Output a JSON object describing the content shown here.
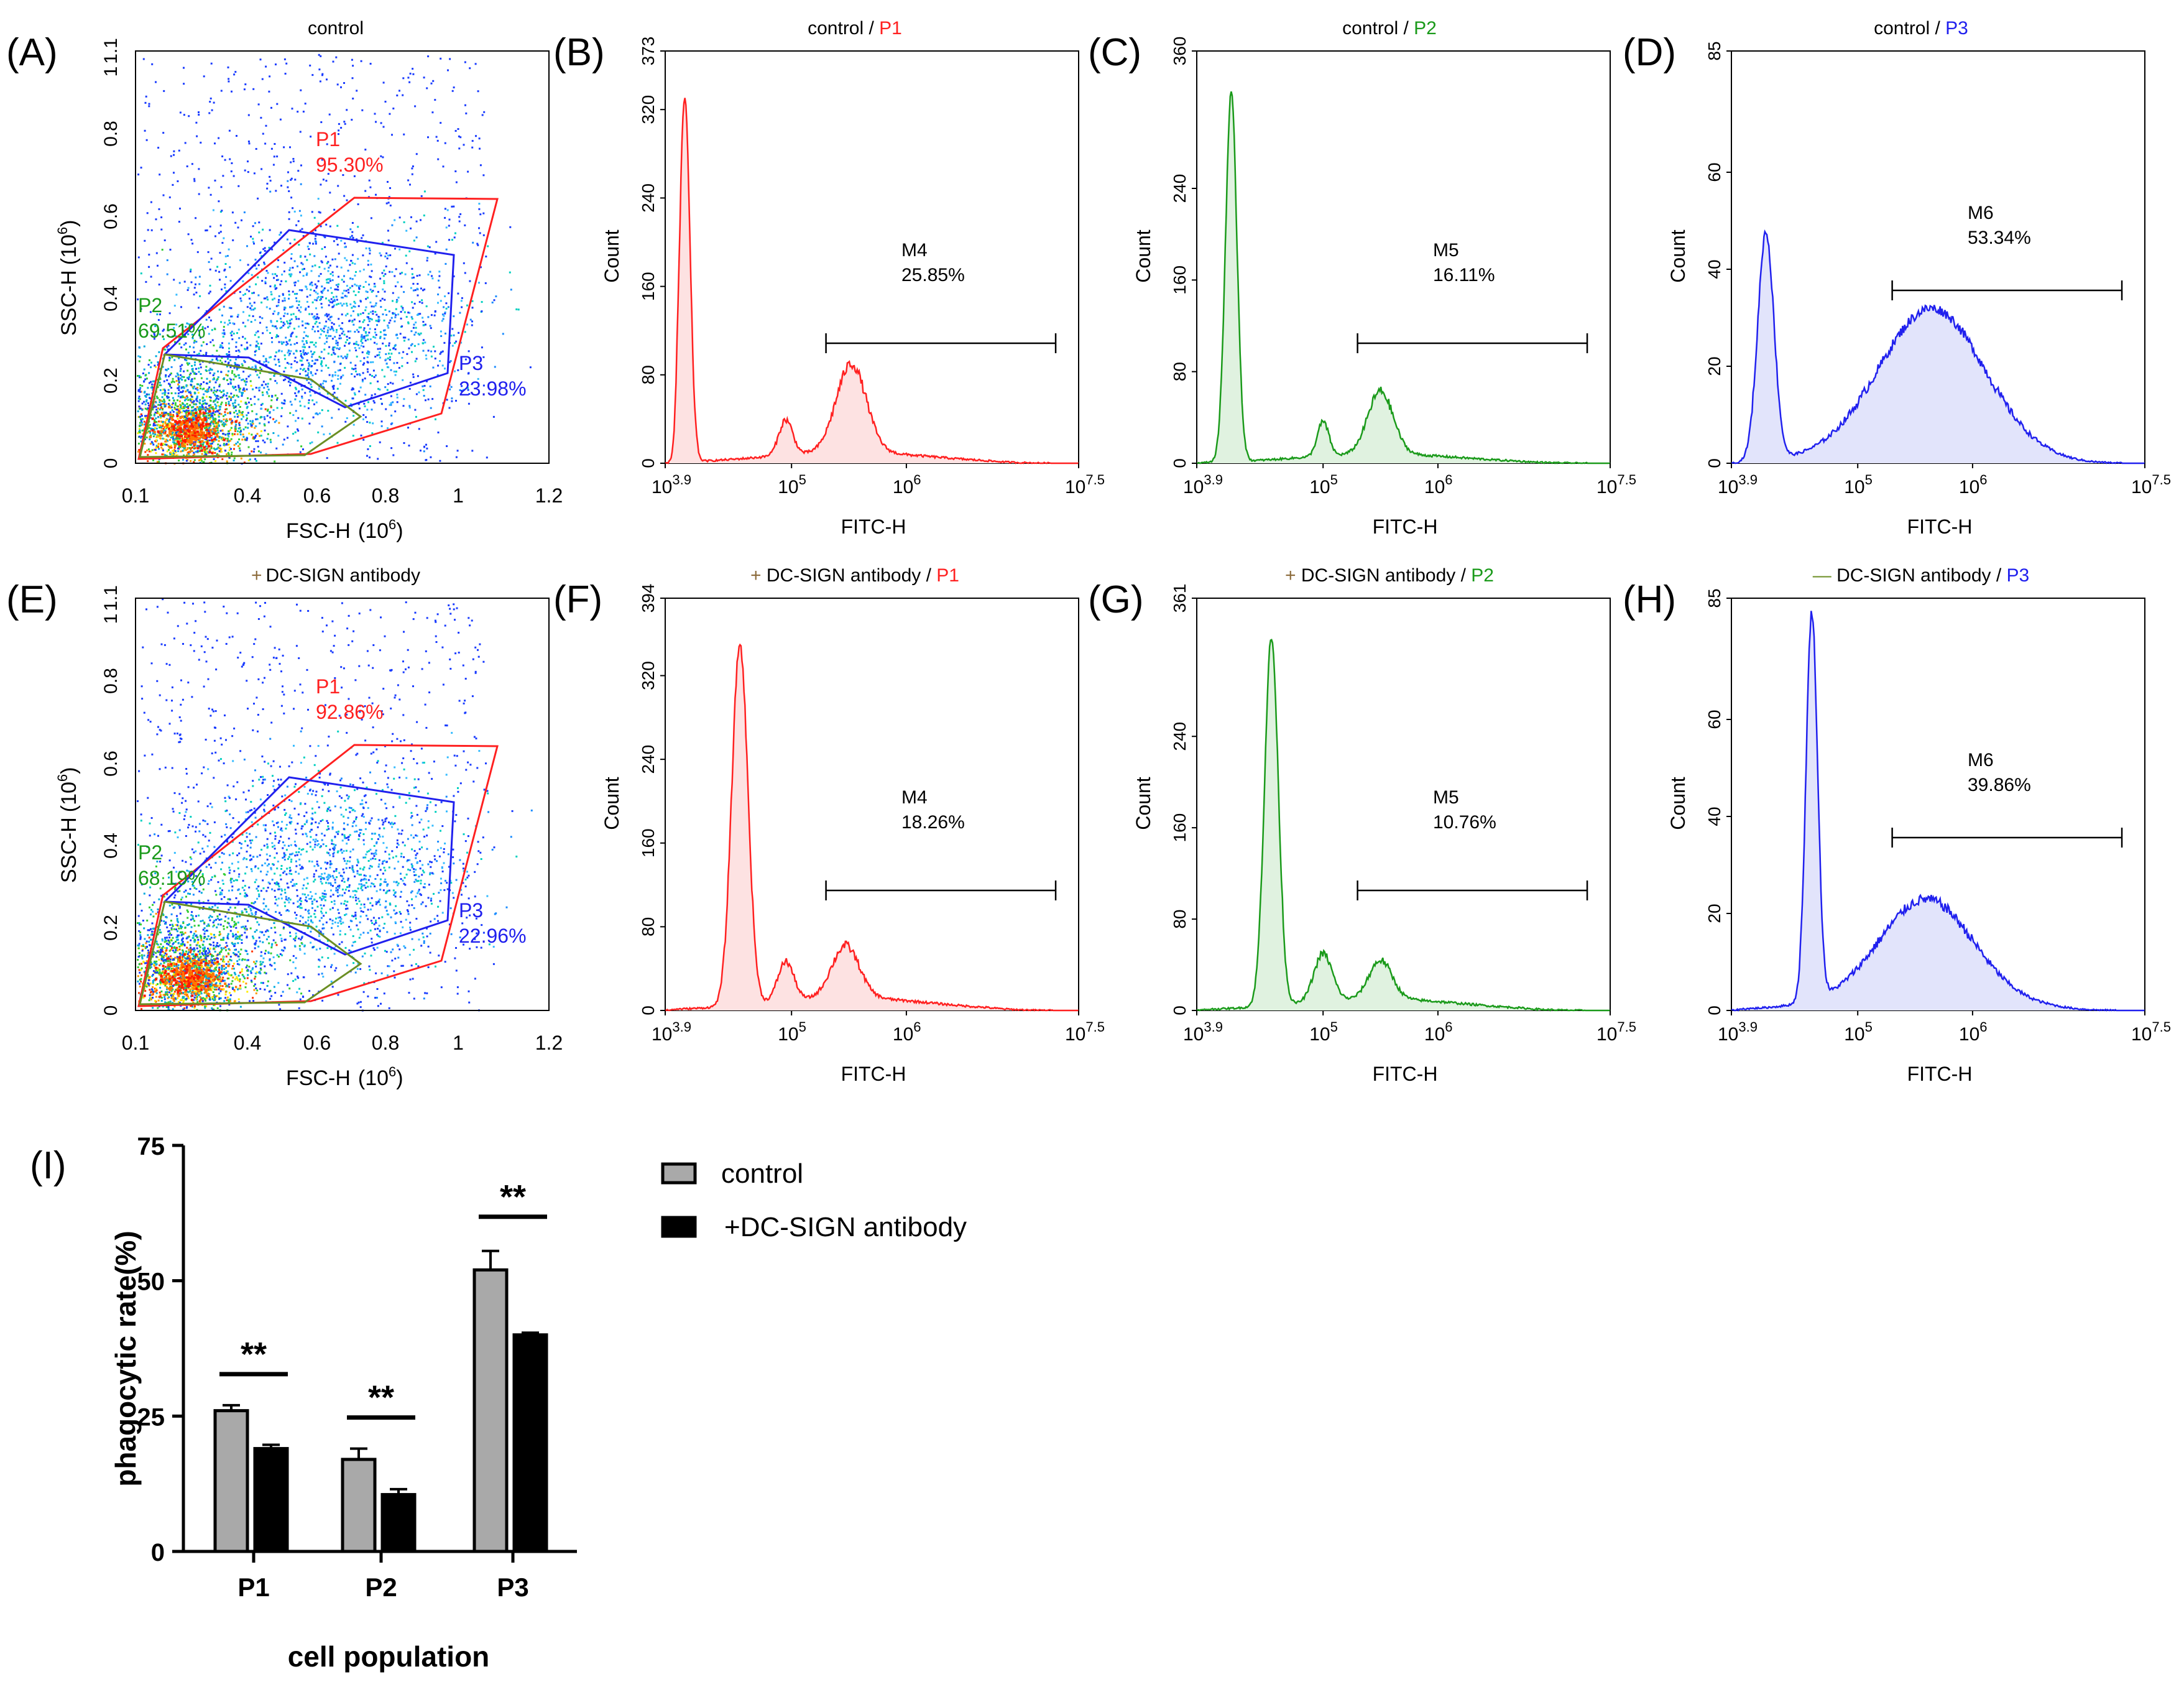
{
  "colors": {
    "red": "#ff2020",
    "green": "#1a9a1a",
    "blue": "#2020ee",
    "black": "#000000",
    "gray": "#a9a9a9",
    "lightred": "#fde2e2",
    "lightgreen": "#e0f2e0",
    "lightblue": "#e2e4fb"
  },
  "panels": {
    "A": {
      "label": "(A)",
      "title": "control",
      "xlabel": "FSC-H",
      "xunit": "(10",
      "xunit_exp": "6",
      "xunit_close": ")",
      "ylabel": "SSC-H",
      "yunit": "(10",
      "yunit_exp": "6",
      "yunit_close": ")",
      "xticks": [
        "0.1",
        "0.4",
        "0.6",
        "0.8",
        "1",
        "1.2"
      ],
      "yticks": [
        "0",
        "0.2",
        "0.4",
        "0.6",
        "0.8",
        "1",
        "1.1"
      ],
      "gates": {
        "P1": {
          "name": "P1",
          "pct": "95.30%"
        },
        "P2": {
          "name": "P2",
          "pct": "69.51%"
        },
        "P3": {
          "name": "P3",
          "pct": "23.98%"
        }
      }
    },
    "E": {
      "label": "(E)",
      "title": "DC-SIGN antibody",
      "title_prefix": "+",
      "xlabel": "FSC-H",
      "xunit": "(10",
      "xunit_exp": "6",
      "xunit_close": ")",
      "ylabel": "SSC-H",
      "yunit": "(10",
      "yunit_exp": "6",
      "yunit_close": ")",
      "xticks": [
        "0.1",
        "0.4",
        "0.6",
        "0.8",
        "1",
        "1.2"
      ],
      "yticks": [
        "0",
        "0.2",
        "0.4",
        "0.6",
        "0.8",
        "1",
        "1.1"
      ],
      "gates": {
        "P1": {
          "name": "P1",
          "pct": "92.86%"
        },
        "P2": {
          "name": "P2",
          "pct": "68.19%"
        },
        "P3": {
          "name": "P3",
          "pct": "22.96%"
        }
      }
    },
    "B": {
      "label": "(B)",
      "title_pre": "control / ",
      "title_gate": "P1",
      "ymax": 373,
      "yticks": [
        "0",
        "80",
        "160",
        "240",
        "320",
        "373"
      ],
      "marker": "M4",
      "pct": "25.85%",
      "peaks": [
        [
          4.07,
          330,
          0.045
        ],
        [
          4.95,
          32,
          0.06
        ],
        [
          5.52,
          80,
          0.13
        ]
      ],
      "baseline": 10
    },
    "C": {
      "label": "(C)",
      "title_pre": "control / ",
      "title_gate": "P2",
      "ymax": 360,
      "yticks": [
        "0",
        "80",
        "160",
        "240",
        "360"
      ],
      "marker": "M5",
      "pct": "16.11%",
      "peaks": [
        [
          4.2,
          320,
          0.05
        ],
        [
          5.0,
          30,
          0.05
        ],
        [
          5.5,
          55,
          0.11
        ]
      ],
      "baseline": 8
    },
    "D": {
      "label": "(D)",
      "title_pre": "control / ",
      "title_gate": "P3",
      "ymax": 85,
      "yticks": [
        "0",
        "20",
        "40",
        "60",
        "85"
      ],
      "marker": "M6",
      "pct": "53.34%",
      "peaks": [
        [
          4.2,
          47,
          0.07
        ],
        [
          5.65,
          29,
          0.45
        ]
      ],
      "baseline": 3
    },
    "F": {
      "label": "(F)",
      "title_prefix": "+",
      "title_pre": "DC-SIGN antibody / ",
      "title_gate": "P1",
      "ymax": 394,
      "yticks": [
        "0",
        "80",
        "160",
        "240",
        "320",
        "394"
      ],
      "marker": "M4",
      "pct": "18.26%",
      "peaks": [
        [
          4.55,
          345,
          0.07
        ],
        [
          4.95,
          38,
          0.07
        ],
        [
          5.47,
          50,
          0.12
        ]
      ],
      "baseline": 12
    },
    "G": {
      "label": "(G)",
      "title_prefix": "+",
      "title_pre": "DC-SIGN antibody / ",
      "title_gate": "P2",
      "ymax": 361,
      "yticks": [
        "0",
        "80",
        "160",
        "240",
        "361"
      ],
      "marker": "M5",
      "pct": "10.76%",
      "peaks": [
        [
          4.55,
          322,
          0.06
        ],
        [
          5.0,
          42,
          0.08
        ],
        [
          5.5,
          34,
          0.1
        ]
      ],
      "baseline": 10
    },
    "H": {
      "label": "(H)",
      "title_prefix": "—",
      "title_pre": "DC-SIGN antibody / ",
      "title_gate": "P3",
      "ymax": 85,
      "yticks": [
        "0",
        "20",
        "40",
        "60",
        "85"
      ],
      "marker": "M6",
      "pct": "39.86%",
      "peaks": [
        [
          4.6,
          80,
          0.05
        ],
        [
          5.6,
          20,
          0.4
        ]
      ],
      "baseline": 3
    }
  },
  "histogram_common": {
    "ylabel": "Count",
    "xlabel": "FITC-H",
    "x_start": "10",
    "x_start_exp": "3.9",
    "x_mid1": "10",
    "x_mid1_exp": "5",
    "x_mid2": "10",
    "x_mid2_exp": "6",
    "x_end": "10",
    "x_end_exp": "7.5",
    "marker_range": [
      5.3,
      7.3
    ]
  },
  "chart_data": {
    "label": "(I)",
    "type": "bar",
    "title": "",
    "categories": [
      "P1",
      "P2",
      "P3"
    ],
    "series": [
      {
        "name": "control",
        "values": [
          26,
          17,
          52
        ],
        "errors": [
          1,
          2,
          3.5
        ],
        "color": "#a9a9a9"
      },
      {
        "name": "+DC-SIGN antibody",
        "values": [
          19,
          10.5,
          40
        ],
        "errors": [
          0.7,
          1,
          0.4
        ],
        "color": "#000000"
      }
    ],
    "significance": [
      "**",
      "**",
      "**"
    ],
    "xlabel": "cell population",
    "ylabel": "phagocytic rate(%)",
    "ylim": [
      0,
      75
    ],
    "yticks": [
      "0",
      "25",
      "50",
      "75"
    ],
    "legend": [
      "control",
      "+DC-SIGN antibody"
    ]
  }
}
